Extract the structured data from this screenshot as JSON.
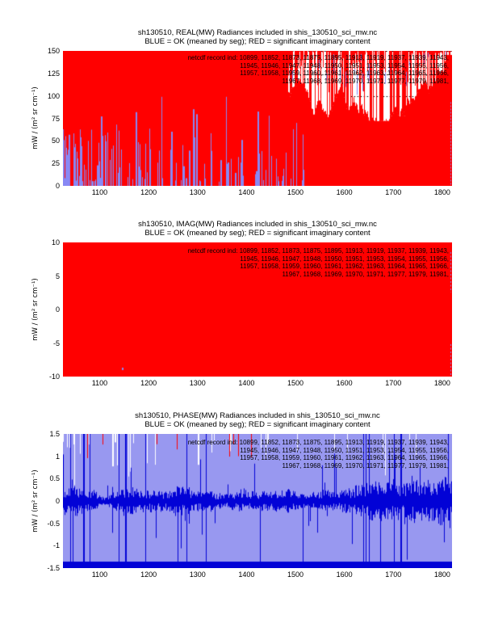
{
  "figure": {
    "background": "#ffffff",
    "page_size": "612x792"
  },
  "annotation": {
    "label_prefix": "netcdf record ind:",
    "lines": [
      "netcdf record ind: 10899, 11852, 11873, 11875, 11895, 11913, 11919, 11937, 11939, 11943,",
      "11945, 11946, 11947, 11948, 11950, 11951, 11953, 11954, 11955, 11956,",
      "11957, 11958, 11959, 11960, 11961, 11962, 11963, 11964, 11965, 11966,",
      "11967, 11968, 11969, 11970, 11971, 11977, 11979, 11981,"
    ],
    "record_indices": [
      10899,
      11852,
      11873,
      11875,
      11895,
      11913,
      11919,
      11937,
      11939,
      11943,
      11945,
      11946,
      11947,
      11948,
      11950,
      11951,
      11953,
      11954,
      11955,
      11956,
      11957,
      11958,
      11959,
      11960,
      11961,
      11962,
      11963,
      11964,
      11965,
      11966,
      11967,
      11968,
      11969,
      11970,
      11971,
      11977,
      11979,
      11981
    ]
  },
  "chart_data": [
    {
      "id": "real",
      "type": "line",
      "title": "sh130510, REAL(MW) Radiances included in shis_130510_sci_mw.nc",
      "subtitle": "BLUE = OK (meaned by seg); RED = significant imaginary content",
      "ylabel": "mW / (m² sr cm⁻¹)",
      "xlabel": "",
      "xlim": [
        1025,
        1820
      ],
      "ylim": [
        0,
        150
      ],
      "xticks": [
        1100,
        1200,
        1300,
        1400,
        1500,
        1600,
        1700,
        1800
      ],
      "yticks": [
        0,
        25,
        50,
        75,
        100,
        125,
        150
      ],
      "legend": {
        "BLUE": "OK (meaned by seg)",
        "RED": "significant imaginary content"
      },
      "colors": {
        "flagged": "#ff0000",
        "ok": "#8888f4",
        "frame": "#000000",
        "background": "#ffffff"
      },
      "description": "Thousands of overlapping radiance spectra; flagged RED traces fill nearly the whole axes, BLUE OK traces appear as spikes rising from 0 in the left half, white gaps with hanging red/blue lines in the upper right, dotted black frame visible along the top.",
      "render": {
        "seed": 130511,
        "kind": "real",
        "left_solid_frac": 0.58
      }
    },
    {
      "id": "imag",
      "type": "line",
      "title": "sh130510, IMAG(MW) Radiances included in shis_130510_sci_mw.nc",
      "subtitle": "BLUE = OK (meaned by seg); RED = significant imaginary content",
      "ylabel": "mW / (m² sr cm⁻¹)",
      "xlabel": "",
      "xlim": [
        1025,
        1820
      ],
      "ylim": [
        -10,
        10
      ],
      "xticks": [
        1100,
        1200,
        1300,
        1400,
        1500,
        1600,
        1700,
        1800
      ],
      "yticks": [
        -10,
        -5,
        0,
        5,
        10
      ],
      "legend": {
        "BLUE": "OK (meaned by seg)",
        "RED": "significant imaginary content"
      },
      "colors": {
        "flagged": "#ff0000",
        "ok": "#8888f4",
        "frame": "#000000",
        "background": "#ffffff"
      },
      "description": "Imaginary-part spectra: RED flagged traces saturate the entire axes (solid red block); only tiny blue marks near the bottom edge and right border.",
      "render": {
        "seed": 130512,
        "kind": "imag",
        "left_solid_frac": 1.0
      }
    },
    {
      "id": "phase",
      "type": "line",
      "title": "sh130510, PHASE(MW) Radiances included in shis_130510_sci_mw.nc",
      "subtitle": "BLUE = OK (meaned by seg); RED = significant imaginary content",
      "ylabel": "mW / (m² sr cm⁻¹)",
      "xlabel": "",
      "xlim": [
        1025,
        1820
      ],
      "ylim": [
        -1.5,
        1.5
      ],
      "xticks": [
        1100,
        1200,
        1300,
        1400,
        1500,
        1600,
        1700,
        1800
      ],
      "yticks": [
        -1.5,
        -1,
        -0.5,
        0,
        0.5,
        1,
        1.5
      ],
      "legend": {
        "BLUE": "OK (meaned by seg)",
        "RED": "significant imaginary content"
      },
      "colors": {
        "flagged": "#ff0000",
        "ok_fill": "#9898f0",
        "trace": "#0202d6",
        "gap": "#ffffff",
        "background": "#ffffff"
      },
      "description": "Phase spectra: light blue-violet block of overlapping traces with a dark blue noisy band centred on 0 (roughly +/-0.4 with spikes to the +/-1.5 limits), a solid dark blue strip clipped along the bottom edge, white vertical gaps and short red flagged ticks hanging from the top, denser on the left.",
      "render": {
        "seed": 130513,
        "kind": "phase",
        "left_solid_frac": 0.0
      }
    }
  ]
}
